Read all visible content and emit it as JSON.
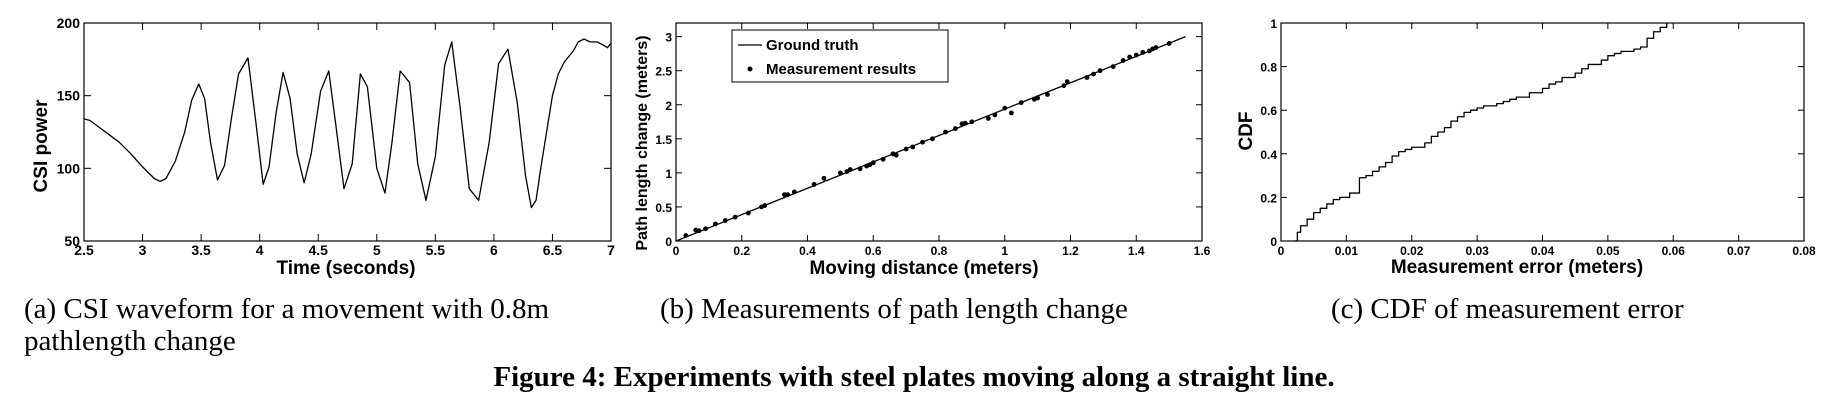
{
  "figure_caption": "Figure 4: Experiments with steel plates moving along a straight line.",
  "captions": {
    "a_line1": "(a) CSI waveform for a movement with 0.8m",
    "a_line2": "pathlength change",
    "b": "(b) Measurements of path length change",
    "c": "(c) CDF of measurement error"
  },
  "chart_data": [
    {
      "id": "a",
      "type": "line",
      "title": "",
      "xlabel": "Time (seconds)",
      "ylabel": "CSI power",
      "xlim": [
        2.5,
        7
      ],
      "ylim": [
        50,
        200
      ],
      "xticks": [
        2.5,
        3,
        3.5,
        4,
        4.5,
        5,
        5.5,
        6,
        6.5,
        7
      ],
      "xtick_labels": [
        "2.5",
        "3",
        "3.5",
        "4",
        "4.5",
        "5",
        "5.5",
        "6",
        "6.5",
        "7"
      ],
      "yticks": [
        50,
        100,
        150,
        200
      ],
      "ytick_labels": [
        "50",
        "100",
        "150",
        "200"
      ],
      "series": [
        {
          "name": "CSI waveform",
          "x": [
            2.5,
            2.55,
            2.6,
            2.65,
            2.7,
            2.8,
            2.9,
            3.0,
            3.1,
            3.15,
            3.2,
            3.28,
            3.36,
            3.42,
            3.48,
            3.53,
            3.58,
            3.64,
            3.7,
            3.76,
            3.82,
            3.9,
            3.97,
            4.03,
            4.08,
            4.14,
            4.2,
            4.26,
            4.32,
            4.38,
            4.44,
            4.52,
            4.59,
            4.65,
            4.72,
            4.79,
            4.86,
            4.92,
            5.0,
            5.07,
            5.13,
            5.2,
            5.28,
            5.35,
            5.42,
            5.5,
            5.58,
            5.64,
            5.71,
            5.79,
            5.87,
            5.96,
            6.04,
            6.12,
            6.2,
            6.27,
            6.32,
            6.36,
            6.4,
            6.45,
            6.5,
            6.55,
            6.6,
            6.65,
            6.68,
            6.72,
            6.77,
            6.82,
            6.88,
            6.93,
            6.97,
            7.0
          ],
          "y": [
            134,
            133,
            130,
            127,
            124,
            118,
            110,
            101,
            93,
            91,
            93,
            105,
            125,
            147,
            158,
            148,
            118,
            92,
            102,
            135,
            165,
            176,
            130,
            89,
            101,
            138,
            166,
            148,
            110,
            90,
            110,
            153,
            167,
            130,
            86,
            103,
            165,
            156,
            100,
            83,
            118,
            167,
            159,
            103,
            78,
            108,
            171,
            187,
            143,
            86,
            78,
            118,
            172,
            182,
            145,
            95,
            73,
            78,
            100,
            125,
            150,
            165,
            173,
            178,
            181,
            187,
            189,
            187,
            187,
            185,
            183,
            186
          ]
        }
      ]
    },
    {
      "id": "b",
      "type": "scatter",
      "title": "",
      "xlabel": "Moving distance (meters)",
      "ylabel": "Path length change (meters)",
      "xlim": [
        0,
        1.6
      ],
      "ylim": [
        0,
        3.2
      ],
      "xticks": [
        0,
        0.2,
        0.4,
        0.6,
        0.8,
        1,
        1.2,
        1.4,
        1.6
      ],
      "xtick_labels": [
        "0",
        "0.2",
        "0.4",
        "0.6",
        "0.8",
        "1",
        "1.2",
        "1.4",
        "1.6"
      ],
      "yticks": [
        0,
        0.5,
        1,
        1.5,
        2,
        2.5,
        3
      ],
      "ytick_labels": [
        "0",
        "0.5",
        "1",
        "1.5",
        "2",
        "2.5",
        "3"
      ],
      "legend": {
        "position": "top-left",
        "entries": [
          "Ground truth",
          "Measurement results"
        ]
      },
      "series": [
        {
          "name": "Ground truth",
          "type": "line",
          "x": [
            0,
            1.55
          ],
          "y": [
            0,
            3.0
          ]
        },
        {
          "name": "Measurement results",
          "type": "scatter",
          "x": [
            0.03,
            0.06,
            0.07,
            0.09,
            0.12,
            0.15,
            0.18,
            0.22,
            0.26,
            0.27,
            0.33,
            0.34,
            0.36,
            0.42,
            0.45,
            0.5,
            0.52,
            0.53,
            0.56,
            0.58,
            0.59,
            0.6,
            0.63,
            0.66,
            0.67,
            0.7,
            0.72,
            0.75,
            0.78,
            0.82,
            0.85,
            0.87,
            0.88,
            0.9,
            0.95,
            0.97,
            1.0,
            1.02,
            1.05,
            1.09,
            1.1,
            1.13,
            1.18,
            1.19,
            1.25,
            1.27,
            1.29,
            1.33,
            1.36,
            1.38,
            1.4,
            1.42,
            1.44,
            1.45,
            1.46,
            1.5
          ],
          "y": [
            0.08,
            0.16,
            0.15,
            0.18,
            0.25,
            0.3,
            0.35,
            0.41,
            0.5,
            0.52,
            0.68,
            0.68,
            0.72,
            0.83,
            0.92,
            1.0,
            1.02,
            1.05,
            1.06,
            1.1,
            1.12,
            1.15,
            1.2,
            1.28,
            1.26,
            1.35,
            1.38,
            1.45,
            1.5,
            1.6,
            1.65,
            1.72,
            1.73,
            1.75,
            1.8,
            1.85,
            1.95,
            1.88,
            2.03,
            2.08,
            2.1,
            2.15,
            2.28,
            2.34,
            2.4,
            2.45,
            2.5,
            2.56,
            2.65,
            2.7,
            2.73,
            2.77,
            2.79,
            2.82,
            2.84,
            2.9
          ]
        }
      ]
    },
    {
      "id": "c",
      "type": "line",
      "title": "",
      "xlabel": "Measurement error (meters)",
      "ylabel": "CDF",
      "xlim": [
        0,
        0.08
      ],
      "ylim": [
        0,
        1
      ],
      "xticks": [
        0,
        0.01,
        0.02,
        0.03,
        0.04,
        0.05,
        0.06,
        0.07,
        0.08
      ],
      "xtick_labels": [
        "0",
        "0.01",
        "0.02",
        "0.03",
        "0.04",
        "0.05",
        "0.06",
        "0.07",
        "0.08"
      ],
      "yticks": [
        0,
        0.2,
        0.4,
        0.6,
        0.8,
        1
      ],
      "ytick_labels": [
        "0",
        "0.2",
        "0.4",
        "0.6",
        "0.8",
        "1"
      ],
      "series": [
        {
          "name": "CDF",
          "step": true,
          "x": [
            0.002,
            0.0025,
            0.003,
            0.004,
            0.005,
            0.006,
            0.007,
            0.008,
            0.009,
            0.0105,
            0.012,
            0.013,
            0.014,
            0.015,
            0.016,
            0.017,
            0.018,
            0.019,
            0.02,
            0.022,
            0.023,
            0.024,
            0.025,
            0.026,
            0.027,
            0.028,
            0.029,
            0.03,
            0.031,
            0.033,
            0.034,
            0.035,
            0.036,
            0.038,
            0.04,
            0.041,
            0.042,
            0.043,
            0.045,
            0.046,
            0.047,
            0.049,
            0.05,
            0.051,
            0.052,
            0.053,
            0.054,
            0.055,
            0.056,
            0.057,
            0.058,
            0.059
          ],
          "y": [
            0.0,
            0.04,
            0.07,
            0.1,
            0.13,
            0.15,
            0.17,
            0.19,
            0.2,
            0.22,
            0.29,
            0.3,
            0.32,
            0.34,
            0.36,
            0.39,
            0.41,
            0.42,
            0.43,
            0.45,
            0.48,
            0.5,
            0.52,
            0.55,
            0.57,
            0.59,
            0.6,
            0.61,
            0.62,
            0.63,
            0.64,
            0.65,
            0.66,
            0.68,
            0.7,
            0.72,
            0.73,
            0.75,
            0.77,
            0.79,
            0.81,
            0.83,
            0.85,
            0.86,
            0.87,
            0.87,
            0.88,
            0.89,
            0.93,
            0.96,
            0.98,
            1.0
          ]
        }
      ]
    }
  ]
}
